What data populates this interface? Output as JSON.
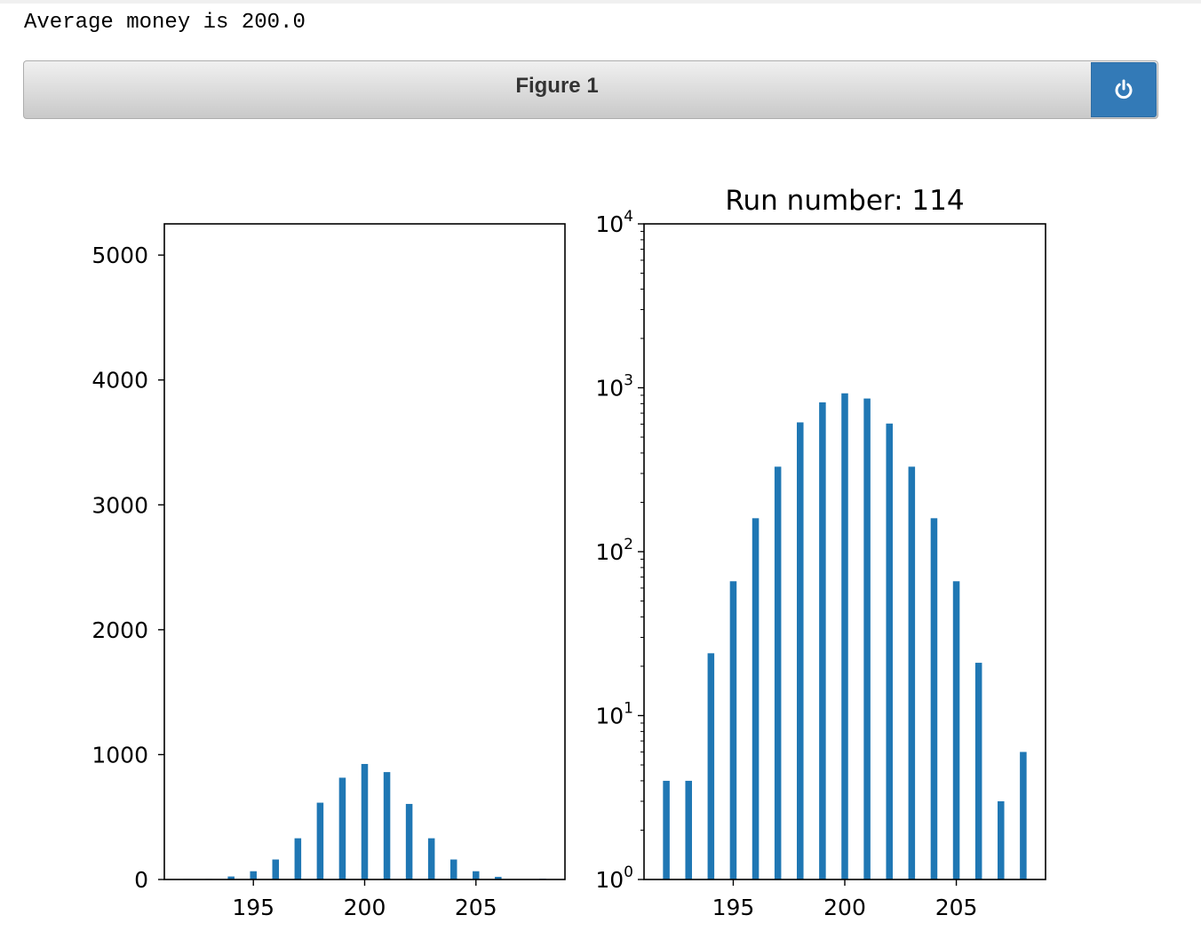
{
  "output": {
    "text": "Average money is 200.0"
  },
  "figure": {
    "title": "Figure 1",
    "power_icon": "power-icon"
  },
  "colors": {
    "bar": "#1f77b4",
    "button": "#337ab7"
  },
  "chart_data": [
    {
      "type": "bar",
      "scale": "linear",
      "title": "",
      "xlim": [
        191,
        209
      ],
      "ylim": [
        0,
        5250
      ],
      "xticks": [
        195,
        200,
        205
      ],
      "yticks": [
        0,
        1000,
        2000,
        3000,
        4000,
        5000
      ],
      "x": [
        192,
        193,
        194,
        195,
        196,
        197,
        198,
        199,
        200,
        201,
        202,
        203,
        204,
        205,
        206,
        207,
        208
      ],
      "values": [
        4,
        4,
        24,
        66,
        160,
        330,
        615,
        815,
        925,
        860,
        605,
        330,
        160,
        66,
        21,
        3,
        6
      ],
      "bar_width": 0.3
    },
    {
      "type": "bar",
      "scale": "log",
      "title": "Run number: 114",
      "xlim": [
        191,
        209
      ],
      "ylim": [
        1,
        10000
      ],
      "xticks": [
        195,
        200,
        205
      ],
      "yticks": [
        1,
        10,
        100,
        1000,
        10000
      ],
      "ytick_labels": [
        {
          "base": "10",
          "exp": "0"
        },
        {
          "base": "10",
          "exp": "1"
        },
        {
          "base": "10",
          "exp": "2"
        },
        {
          "base": "10",
          "exp": "3"
        },
        {
          "base": "10",
          "exp": "4"
        }
      ],
      "x": [
        192,
        193,
        194,
        195,
        196,
        197,
        198,
        199,
        200,
        201,
        202,
        203,
        204,
        205,
        206,
        207,
        208
      ],
      "values": [
        4,
        4,
        24,
        66,
        160,
        330,
        615,
        815,
        925,
        860,
        605,
        330,
        160,
        66,
        21,
        3,
        6
      ],
      "bar_width": 0.3
    }
  ]
}
